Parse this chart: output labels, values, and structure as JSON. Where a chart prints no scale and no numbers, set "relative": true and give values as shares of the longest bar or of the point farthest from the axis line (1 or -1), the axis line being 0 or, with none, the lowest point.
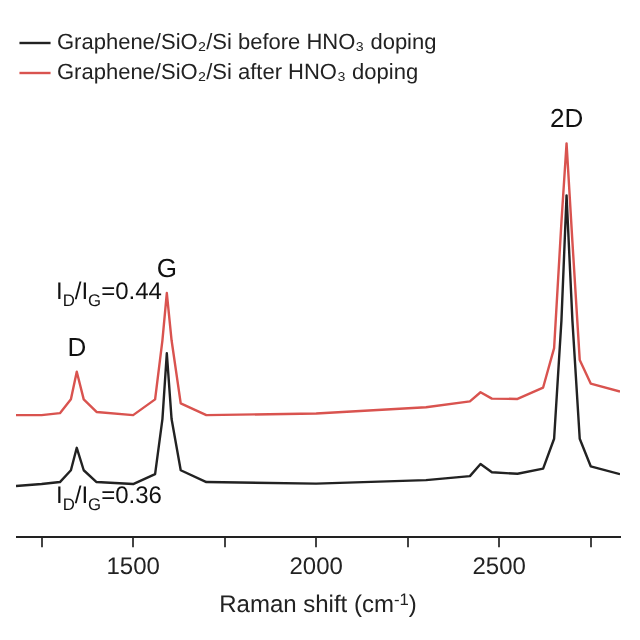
{
  "chart_data": {
    "type": "line",
    "relative": true,
    "xlabel": "Raman shift (cm$^{-1}$)",
    "x": [
      1180,
      1250,
      1300,
      1330,
      1346,
      1365,
      1400,
      1500,
      1560,
      1580,
      1592,
      1605,
      1630,
      1700,
      2000,
      2300,
      2420,
      2449,
      2480,
      2550,
      2620,
      2650,
      2670,
      2684,
      2700,
      2720,
      2750,
      2830
    ],
    "series": [
      {
        "name": "Graphene/SiO₂/Si before HNO₃ doping",
        "color": "#222222",
        "values": [
          0.13,
          0.135,
          0.14,
          0.17,
          0.227,
          0.17,
          0.14,
          0.135,
          0.16,
          0.3,
          0.467,
          0.3,
          0.17,
          0.14,
          0.136,
          0.145,
          0.155,
          0.186,
          0.165,
          0.161,
          0.174,
          0.25,
          0.55,
          0.868,
          0.55,
          0.25,
          0.18,
          0.16
        ]
      },
      {
        "name": "Graphene/SiO₂/Si after HNO₃ doping",
        "color": "#d9534f",
        "values": [
          0.31,
          0.31,
          0.315,
          0.35,
          0.42,
          0.35,
          0.318,
          0.31,
          0.35,
          0.5,
          0.62,
          0.5,
          0.34,
          0.31,
          0.314,
          0.33,
          0.345,
          0.368,
          0.352,
          0.351,
          0.38,
          0.48,
          0.8,
          1.0,
          0.75,
          0.45,
          0.39,
          0.37
        ]
      }
    ],
    "xlim": [
      1180,
      2830
    ],
    "xticks": [
      {
        "value": 1250,
        "label": null
      },
      1500,
      {
        "value": 1750,
        "label": null
      },
      2000,
      {
        "value": 2250,
        "label": null
      },
      2500,
      {
        "value": 2750,
        "label": null
      }
    ],
    "annotations": [
      {
        "text": "D",
        "x": 1346,
        "y": 0.42
      },
      {
        "text": "G",
        "x": 1592,
        "y": 0.62
      },
      {
        "text": "2D",
        "x": 2684,
        "y": 1.0
      },
      "I$_{D}$/I$_{G}$=0.44",
      "I$_{D}$/I$_{G}$=0.36"
    ],
    "grid": false,
    "legend": "top left",
    "marker": "none",
    "line_style": "solid"
  }
}
